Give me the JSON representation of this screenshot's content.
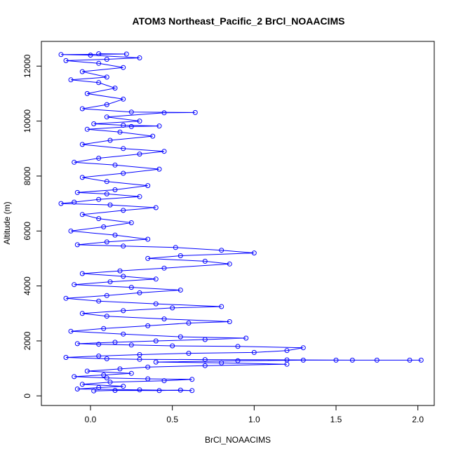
{
  "chart_data": {
    "type": "scatter",
    "title": "ATOM3 Northeast_Pacific_2 BrCl_NOAACIMS",
    "xlabel": "BrCl_NOAACIMS",
    "ylabel": "Altitude (m)",
    "xlim": [
      -0.3,
      2.1
    ],
    "ylim": [
      -350,
      12900
    ],
    "x_ticks": [
      0.0,
      0.5,
      1.0,
      1.5,
      2.0
    ],
    "x_tick_labels": [
      "0.0",
      "0.5",
      "1.0",
      "1.5",
      "2.0"
    ],
    "y_ticks": [
      0,
      2000,
      4000,
      6000,
      8000,
      10000,
      12000
    ],
    "y_tick_labels": [
      "0",
      "2000",
      "4000",
      "6000",
      "8000",
      "10000",
      "12000"
    ],
    "grid": false,
    "legend": "none",
    "series": [
      {
        "color": "#0000ff",
        "marker": "open-circle",
        "connected": true,
        "points": [
          [
            0.02,
            180
          ],
          [
            0.15,
            200
          ],
          [
            0.42,
            190
          ],
          [
            0.55,
            210
          ],
          [
            0.62,
            190
          ],
          [
            0.3,
            220
          ],
          [
            -0.08,
            250
          ],
          [
            0.05,
            300
          ],
          [
            0.2,
            350
          ],
          [
            -0.05,
            420
          ],
          [
            0.12,
            500
          ],
          [
            0.45,
            550
          ],
          [
            0.62,
            600
          ],
          [
            0.35,
            620
          ],
          [
            0.1,
            650
          ],
          [
            -0.1,
            700
          ],
          [
            0.08,
            760
          ],
          [
            0.25,
            820
          ],
          [
            -0.02,
            900
          ],
          [
            0.18,
            980
          ],
          [
            0.35,
            1050
          ],
          [
            0.7,
            1100
          ],
          [
            1.2,
            1150
          ],
          [
            0.8,
            1200
          ],
          [
            0.4,
            1230
          ],
          [
            0.9,
            1280
          ],
          [
            1.3,
            1300
          ],
          [
            1.5,
            1300
          ],
          [
            1.75,
            1300
          ],
          [
            1.95,
            1300
          ],
          [
            2.02,
            1300
          ],
          [
            1.6,
            1300
          ],
          [
            1.2,
            1310
          ],
          [
            0.7,
            1320
          ],
          [
            0.3,
            1330
          ],
          [
            0.1,
            1350
          ],
          [
            -0.15,
            1400
          ],
          [
            0.05,
            1450
          ],
          [
            0.3,
            1500
          ],
          [
            0.6,
            1550
          ],
          [
            1.0,
            1580
          ],
          [
            1.2,
            1650
          ],
          [
            1.3,
            1750
          ],
          [
            0.9,
            1800
          ],
          [
            0.5,
            1820
          ],
          [
            0.25,
            1850
          ],
          [
            0.05,
            1880
          ],
          [
            -0.08,
            1900
          ],
          [
            0.15,
            1950
          ],
          [
            0.4,
            2000
          ],
          [
            0.7,
            2050
          ],
          [
            0.95,
            2100
          ],
          [
            0.55,
            2150
          ],
          [
            0.2,
            2250
          ],
          [
            -0.12,
            2350
          ],
          [
            0.08,
            2450
          ],
          [
            0.35,
            2550
          ],
          [
            0.6,
            2650
          ],
          [
            0.85,
            2700
          ],
          [
            0.45,
            2800
          ],
          [
            0.1,
            2900
          ],
          [
            -0.05,
            3000
          ],
          [
            0.2,
            3100
          ],
          [
            0.5,
            3200
          ],
          [
            0.8,
            3250
          ],
          [
            0.4,
            3350
          ],
          [
            0.05,
            3450
          ],
          [
            -0.15,
            3550
          ],
          [
            0.1,
            3650
          ],
          [
            0.3,
            3750
          ],
          [
            0.55,
            3850
          ],
          [
            0.25,
            3950
          ],
          [
            -0.1,
            4050
          ],
          [
            0.12,
            4150
          ],
          [
            0.4,
            4250
          ],
          [
            0.2,
            4350
          ],
          [
            -0.05,
            4450
          ],
          [
            0.18,
            4550
          ],
          [
            0.45,
            4650
          ],
          [
            0.85,
            4800
          ],
          [
            0.7,
            4900
          ],
          [
            0.35,
            5000
          ],
          [
            0.55,
            5100
          ],
          [
            1.0,
            5200
          ],
          [
            0.8,
            5300
          ],
          [
            0.52,
            5400
          ],
          [
            0.2,
            5450
          ],
          [
            -0.08,
            5500
          ],
          [
            0.1,
            5600
          ],
          [
            0.35,
            5700
          ],
          [
            0.15,
            5850
          ],
          [
            -0.12,
            6000
          ],
          [
            0.08,
            6150
          ],
          [
            0.25,
            6300
          ],
          [
            0.05,
            6450
          ],
          [
            -0.05,
            6600
          ],
          [
            0.2,
            6750
          ],
          [
            0.4,
            6850
          ],
          [
            0.12,
            6950
          ],
          [
            -0.18,
            7000
          ],
          [
            -0.1,
            7050
          ],
          [
            0.05,
            7150
          ],
          [
            0.3,
            7250
          ],
          [
            0.1,
            7350
          ],
          [
            -0.08,
            7400
          ],
          [
            0.15,
            7500
          ],
          [
            0.35,
            7650
          ],
          [
            0.1,
            7800
          ],
          [
            -0.05,
            7950
          ],
          [
            0.2,
            8100
          ],
          [
            0.42,
            8250
          ],
          [
            0.15,
            8400
          ],
          [
            -0.1,
            8500
          ],
          [
            0.05,
            8650
          ],
          [
            0.3,
            8800
          ],
          [
            0.45,
            8900
          ],
          [
            0.2,
            9000
          ],
          [
            -0.05,
            9150
          ],
          [
            0.12,
            9300
          ],
          [
            0.38,
            9450
          ],
          [
            0.18,
            9600
          ],
          [
            -0.02,
            9700
          ],
          [
            0.25,
            9800
          ],
          [
            0.42,
            9820
          ],
          [
            0.2,
            9850
          ],
          [
            0.02,
            9900
          ],
          [
            0.3,
            10000
          ],
          [
            0.1,
            10150
          ],
          [
            0.45,
            10300
          ],
          [
            0.64,
            10310
          ],
          [
            0.25,
            10330
          ],
          [
            -0.05,
            10450
          ],
          [
            0.1,
            10600
          ],
          [
            0.2,
            10800
          ],
          [
            -0.02,
            11000
          ],
          [
            0.15,
            11200
          ],
          [
            0.05,
            11400
          ],
          [
            -0.12,
            11500
          ],
          [
            0.1,
            11600
          ],
          [
            -0.05,
            11800
          ],
          [
            0.2,
            11950
          ],
          [
            0.05,
            12100
          ],
          [
            -0.15,
            12200
          ],
          [
            0.1,
            12250
          ],
          [
            0.3,
            12300
          ],
          [
            0.0,
            12400
          ],
          [
            -0.18,
            12420
          ],
          [
            0.22,
            12440
          ],
          [
            0.05,
            12450
          ]
        ]
      }
    ]
  }
}
